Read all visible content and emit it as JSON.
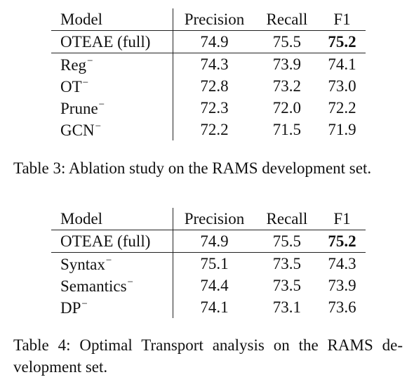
{
  "table3": {
    "headers": [
      "Model",
      "Precision",
      "Recall",
      "F1"
    ],
    "rows": [
      {
        "model": "OTEAE (full)",
        "minus": "",
        "precision": "74.9",
        "recall": "75.5",
        "f1": "75.2"
      },
      {
        "model": "Reg",
        "minus": "−",
        "precision": "74.3",
        "recall": "73.9",
        "f1": "74.1"
      },
      {
        "model": "OT",
        "minus": "−",
        "precision": "72.8",
        "recall": "73.2",
        "f1": "73.0"
      },
      {
        "model": "Prune",
        "minus": "−",
        "precision": "72.3",
        "recall": "72.0",
        "f1": "72.2"
      },
      {
        "model": "GCN",
        "minus": "−",
        "precision": "72.2",
        "recall": "71.5",
        "f1": "71.9"
      }
    ],
    "caption": "Table 3: Ablation study on the RAMS development set."
  },
  "table4": {
    "headers": [
      "Model",
      "Precision",
      "Recall",
      "F1"
    ],
    "rows": [
      {
        "model": "OTEAE (full)",
        "minus": "",
        "precision": "74.9",
        "recall": "75.5",
        "f1": "75.2"
      },
      {
        "model": "Syntax",
        "minus": "−",
        "precision": "75.1",
        "recall": "73.5",
        "f1": "74.3"
      },
      {
        "model": "Semantics",
        "minus": "−",
        "precision": "74.4",
        "recall": "73.5",
        "f1": "73.9"
      },
      {
        "model": "DP",
        "minus": "−",
        "precision": "74.1",
        "recall": "73.1",
        "f1": "73.6"
      }
    ],
    "caption_line1": "Table 4: Optimal Transport analysis on the RAMS de-",
    "caption_line2": "velopment set."
  }
}
